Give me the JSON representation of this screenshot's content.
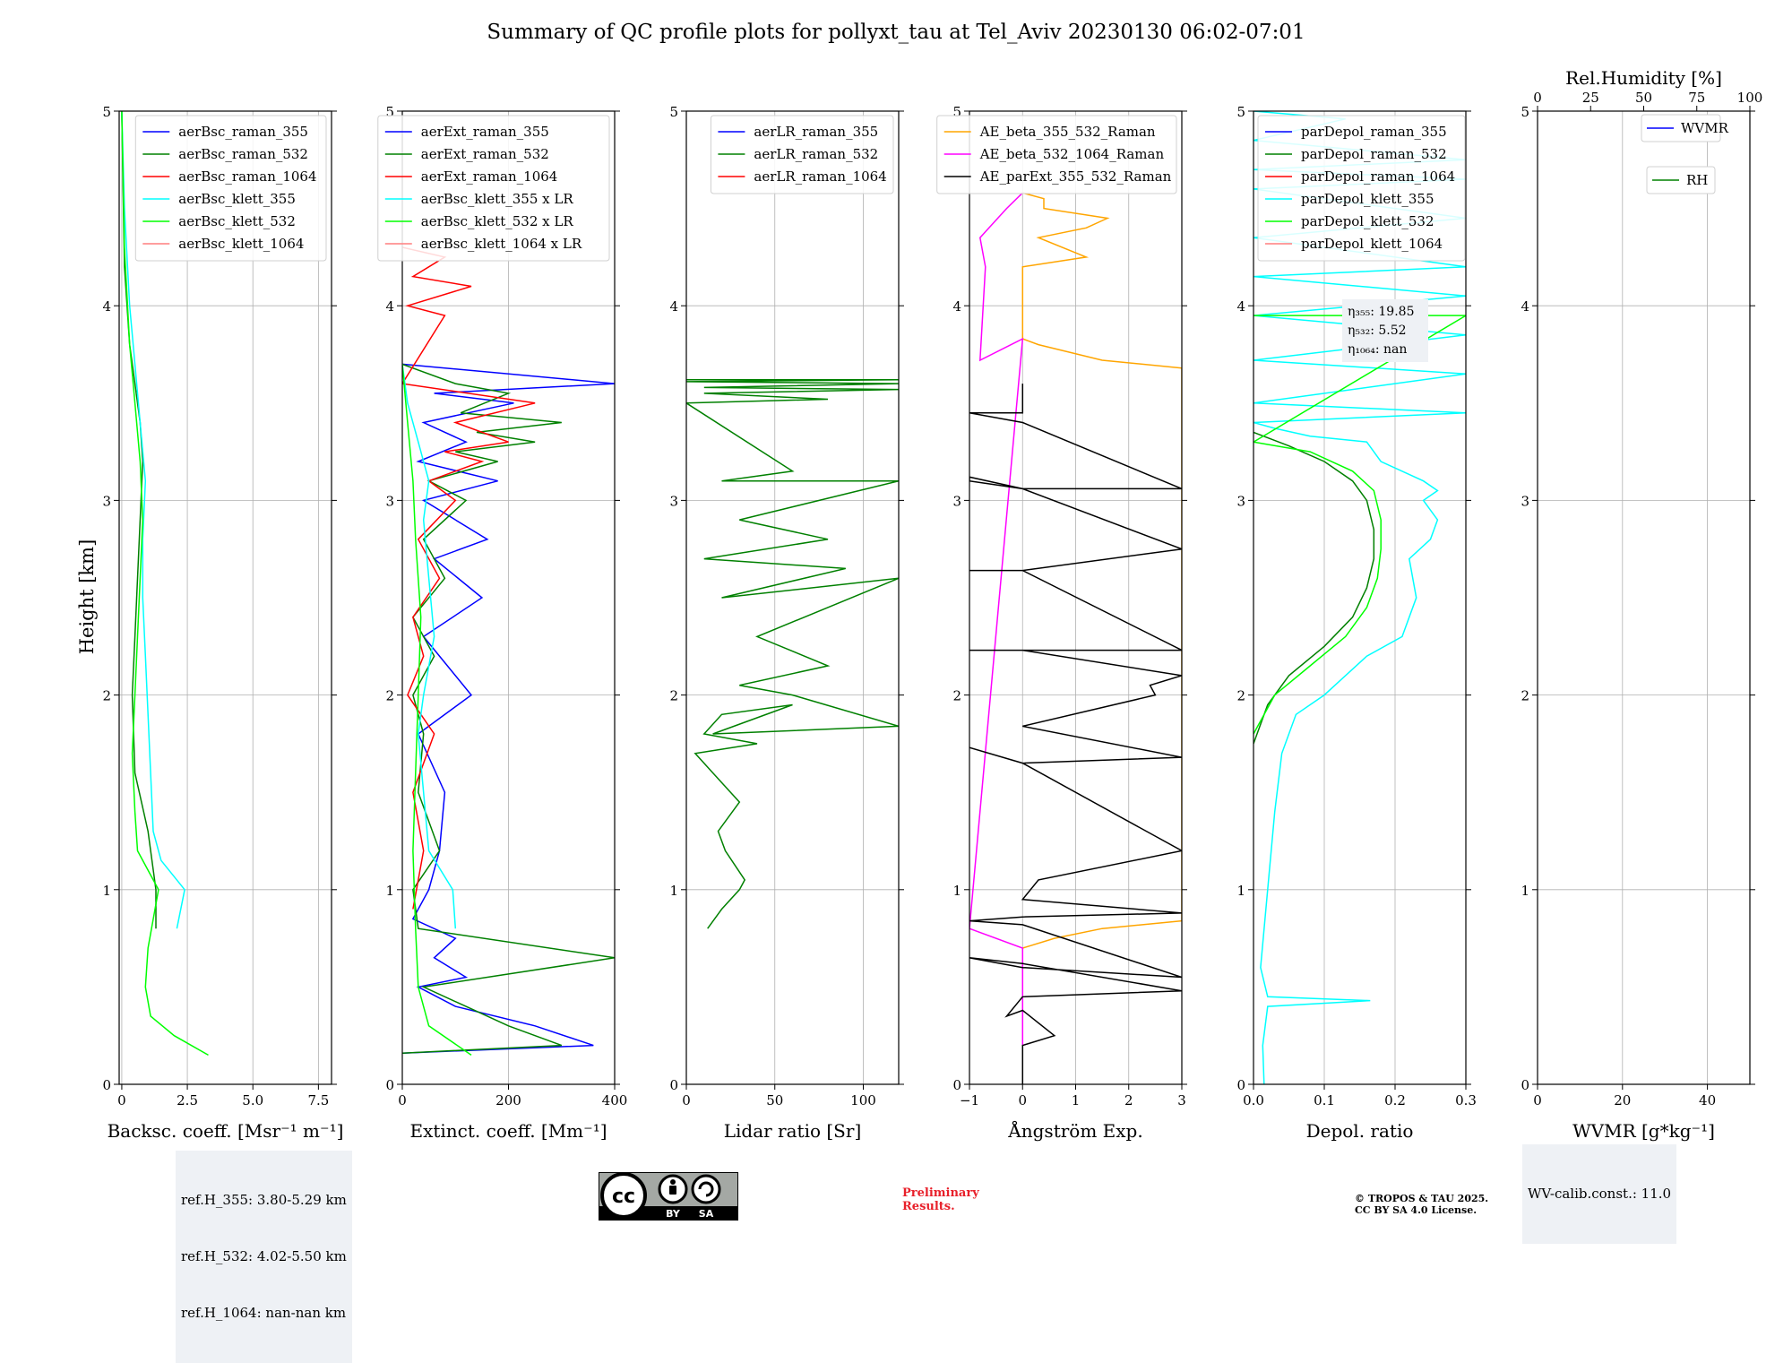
{
  "title": "Summary of QC profile plots for pollyxt_tau at Tel_Aviv 20230130 06:02-07:01",
  "ylabel": "Height [km]",
  "colors": {
    "blue": "#0000ff",
    "green": "#008000",
    "red": "#ff0000",
    "cyan": "#00ffff",
    "lime": "#00ff00",
    "lightred": "#ff7f7f",
    "orange": "#ffa500",
    "magenta": "#ff00ff",
    "black": "#000000"
  },
  "chart_data": [
    {
      "type": "line",
      "xlabel": "Backsc. coeff. [Msr⁻¹ m⁻¹]",
      "xlim": [
        -0.1,
        8.0
      ],
      "ylim": [
        0,
        5
      ],
      "xticks": [
        0,
        2.5,
        5.0,
        7.5
      ],
      "xtick_labels": [
        "0",
        "2.5",
        "5.0",
        "7.5"
      ],
      "yticks": [
        0,
        1,
        2,
        3,
        4,
        5
      ],
      "legend": "upper right",
      "series": [
        {
          "name": "aerBsc_raman_355",
          "color": "blue",
          "x": [],
          "y": []
        },
        {
          "name": "aerBsc_raman_532",
          "color": "green",
          "x": [
            1.3,
            1.3,
            1.0,
            0.5,
            0.4,
            0.5,
            0.6,
            0.7,
            0.8,
            0.7,
            0.5,
            0.3,
            0.1,
            0.0
          ],
          "y": [
            0.8,
            1.0,
            1.3,
            1.6,
            2.0,
            2.3,
            2.6,
            2.9,
            3.2,
            3.4,
            3.6,
            3.8,
            4.2,
            5.0
          ]
        },
        {
          "name": "aerBsc_raman_1064",
          "color": "red",
          "x": [],
          "y": []
        },
        {
          "name": "aerBsc_klett_355",
          "color": "cyan",
          "x": [
            2.1,
            2.4,
            1.5,
            1.2,
            1.1,
            1.0,
            0.9,
            0.8,
            0.8,
            0.9,
            0.7,
            0.5,
            0.3,
            0.1,
            0.0
          ],
          "y": [
            0.8,
            1.0,
            1.15,
            1.3,
            1.6,
            1.9,
            2.2,
            2.5,
            2.8,
            3.1,
            3.4,
            3.7,
            4.0,
            4.5,
            5.0
          ]
        },
        {
          "name": "aerBsc_klett_532",
          "color": "lime",
          "x": [
            3.3,
            2.0,
            1.1,
            0.9,
            1.0,
            1.4,
            0.6,
            0.5,
            0.4,
            0.5,
            0.6,
            0.7,
            0.8,
            0.7,
            0.5,
            0.3,
            0.1,
            0.0
          ],
          "y": [
            0.15,
            0.25,
            0.35,
            0.5,
            0.7,
            1.0,
            1.2,
            1.4,
            1.7,
            2.0,
            2.3,
            2.6,
            2.9,
            3.2,
            3.5,
            3.8,
            4.3,
            5.0
          ]
        },
        {
          "name": "aerBsc_klett_1064",
          "color": "lightred",
          "x": [],
          "y": []
        }
      ]
    },
    {
      "type": "line",
      "xlabel": "Extinct. coeff. [Mm⁻¹]",
      "xlim": [
        0,
        400
      ],
      "ylim": [
        0,
        5
      ],
      "xticks": [
        0,
        200,
        400
      ],
      "xtick_labels": [
        "0",
        "200",
        "400"
      ],
      "yticks": [
        0,
        1,
        2,
        3,
        4,
        5
      ],
      "legend": "upper right",
      "series": [
        {
          "name": "aerExt_raman_355",
          "color": "blue",
          "x": [
            0,
            360,
            250,
            100,
            30,
            120,
            60,
            100,
            20,
            50,
            70,
            80,
            30,
            130,
            40,
            150,
            60,
            160,
            40,
            180,
            30,
            120,
            40,
            210,
            60,
            400,
            0
          ],
          "y": [
            0.16,
            0.2,
            0.3,
            0.4,
            0.5,
            0.55,
            0.65,
            0.75,
            0.85,
            1.0,
            1.2,
            1.5,
            1.8,
            2.0,
            2.3,
            2.5,
            2.7,
            2.8,
            3.0,
            3.1,
            3.2,
            3.3,
            3.4,
            3.5,
            3.55,
            3.6,
            3.7
          ]
        },
        {
          "name": "aerExt_raman_532",
          "color": "green",
          "x": [
            0,
            300,
            200,
            120,
            40,
            400,
            30,
            20,
            70,
            30,
            40,
            20,
            60,
            20,
            80,
            40,
            120,
            50,
            180,
            100,
            250,
            140,
            300,
            110,
            200,
            100,
            0
          ],
          "y": [
            0.16,
            0.2,
            0.3,
            0.4,
            0.5,
            0.65,
            0.8,
            1.0,
            1.2,
            1.5,
            1.8,
            2.0,
            2.2,
            2.4,
            2.6,
            2.8,
            3.0,
            3.1,
            3.2,
            3.25,
            3.3,
            3.35,
            3.4,
            3.45,
            3.55,
            3.6,
            3.7
          ]
        },
        {
          "name": "aerExt_raman_1064",
          "color": "red",
          "x": [
            20,
            40,
            20,
            60,
            10,
            40,
            20,
            70,
            30,
            100,
            50,
            150,
            80,
            200,
            100,
            250,
            0,
            80,
            10,
            130,
            20,
            80,
            0
          ],
          "y": [
            0.9,
            1.2,
            1.5,
            1.8,
            2.0,
            2.2,
            2.4,
            2.6,
            2.8,
            3.0,
            3.1,
            3.2,
            3.25,
            3.3,
            3.4,
            3.5,
            3.6,
            3.95,
            4.0,
            4.1,
            4.15,
            4.25,
            4.3
          ]
        },
        {
          "name": "aerBsc_klett_355 x LR",
          "color": "cyan",
          "x": [
            100,
            95,
            50,
            40,
            30,
            40,
            60,
            50,
            40,
            50,
            30,
            10,
            0
          ],
          "y": [
            0.8,
            1.0,
            1.2,
            1.5,
            1.8,
            2.0,
            2.3,
            2.6,
            2.9,
            3.1,
            3.3,
            3.5,
            3.7
          ]
        },
        {
          "name": "aerBsc_klett_532 x LR",
          "color": "lime",
          "x": [
            130,
            50,
            30,
            25,
            20,
            25,
            30,
            35,
            25,
            20,
            10,
            0
          ],
          "y": [
            0.15,
            0.3,
            0.5,
            0.8,
            1.2,
            1.6,
            2.0,
            2.4,
            2.8,
            3.1,
            3.4,
            3.7
          ]
        },
        {
          "name": "aerBsc_klett_1064 x LR",
          "color": "lightred",
          "x": [],
          "y": []
        }
      ]
    },
    {
      "type": "line",
      "xlabel": "Lidar ratio [Sr]",
      "xlim": [
        0,
        120
      ],
      "ylim": [
        0,
        5
      ],
      "xticks": [
        0,
        50,
        100
      ],
      "xtick_labels": [
        "0",
        "50",
        "100"
      ],
      "yticks": [
        0,
        1,
        2,
        3,
        4,
        5
      ],
      "legend": "upper right",
      "series": [
        {
          "name": "aerLR_raman_355",
          "color": "blue",
          "x": [],
          "y": []
        },
        {
          "name": "aerLR_raman_532",
          "color": "green",
          "x": [
            12,
            20,
            30,
            33,
            22,
            18,
            30,
            15,
            5,
            40,
            10,
            20,
            60,
            15,
            120,
            60,
            30,
            80,
            40,
            120,
            20,
            90,
            10,
            80,
            30,
            120,
            20,
            60,
            0,
            80,
            10,
            120,
            10,
            120,
            0,
            120,
            0
          ],
          "y": [
            0.8,
            0.9,
            1.0,
            1.05,
            1.2,
            1.3,
            1.45,
            1.6,
            1.7,
            1.75,
            1.8,
            1.9,
            1.95,
            1.8,
            1.84,
            2.0,
            2.05,
            2.15,
            2.3,
            2.6,
            2.5,
            2.65,
            2.7,
            2.8,
            2.9,
            3.1,
            3.1,
            3.15,
            3.5,
            3.52,
            3.55,
            3.57,
            3.58,
            3.6,
            3.61,
            3.62,
            3.62
          ]
        },
        {
          "name": "aerLR_raman_1064",
          "color": "red",
          "x": [],
          "y": []
        }
      ]
    },
    {
      "type": "line",
      "xlabel": "Ångström Exp.",
      "xlim": [
        -1,
        3
      ],
      "ylim": [
        0,
        5
      ],
      "xticks": [
        -1,
        0,
        1,
        2,
        3
      ],
      "xtick_labels": [
        "−1",
        "0",
        "1",
        "2",
        "3"
      ],
      "yticks": [
        0,
        1,
        2,
        3,
        4,
        5
      ],
      "legend": "upper right",
      "series": [
        {
          "name": "AE_beta_355_532_Raman",
          "color": "orange",
          "x": [
            0,
            0.6,
            1.5,
            3.0,
            3.0,
            1.5,
            0.3,
            0,
            0,
            1.2,
            0.3,
            1.2,
            1.6,
            0.4,
            0.4,
            0
          ],
          "y": [
            0.7,
            0.75,
            0.8,
            0.84,
            3.68,
            3.72,
            3.8,
            3.83,
            4.2,
            4.25,
            4.35,
            4.4,
            4.45,
            4.5,
            4.55,
            4.58
          ]
        },
        {
          "name": "AE_beta_532_1064_Raman",
          "color": "magenta",
          "x": [
            0,
            0,
            -1,
            0,
            -0.8,
            -0.7,
            -0.8,
            -0.3,
            0
          ],
          "y": [
            0.2,
            0.7,
            0.8,
            3.83,
            3.72,
            4.2,
            4.35,
            4.5,
            4.58
          ]
        },
        {
          "name": "AE_parExt_355_532_Raman",
          "color": "black",
          "x": [
            0,
            0,
            0.6,
            0,
            -0.3,
            0,
            3,
            0,
            -1,
            0,
            3,
            0,
            -1,
            0,
            3,
            0,
            0.3,
            3,
            0,
            -1,
            0,
            3,
            0,
            2.5,
            2.4,
            3,
            0,
            -1,
            0,
            3,
            0,
            -1,
            0,
            3,
            0,
            -1,
            -1,
            0,
            3,
            0,
            -1,
            0,
            0
          ],
          "y": [
            0,
            0.2,
            0.25,
            0.38,
            0.35,
            0.45,
            0.48,
            0.62,
            0.65,
            0.6,
            0.55,
            0.82,
            0.84,
            0.86,
            0.88,
            0.95,
            1.05,
            1.2,
            1.65,
            1.73,
            1.65,
            1.68,
            1.84,
            2.0,
            2.05,
            2.1,
            2.23,
            2.23,
            2.23,
            2.23,
            2.64,
            2.64,
            2.64,
            2.75,
            3.06,
            3.1,
            3.12,
            3.06,
            3.06,
            3.4,
            3.45,
            3.45,
            3.6
          ]
        }
      ]
    },
    {
      "type": "line",
      "xlabel": "Depol. ratio",
      "xlim": [
        0,
        0.3
      ],
      "ylim": [
        0,
        5
      ],
      "xticks": [
        0,
        0.1,
        0.2,
        0.3
      ],
      "xtick_labels": [
        "0.0",
        "0.1",
        "0.2",
        "0.3"
      ],
      "yticks": [
        0,
        1,
        2,
        3,
        4,
        5
      ],
      "legend": "upper left",
      "annotations": [
        "η₃₅₅: 19.85",
        "η₅₃₂: 5.52",
        "η₁₀₆₄: nan"
      ],
      "series": [
        {
          "name": "parDepol_raman_355",
          "color": "blue",
          "x": [],
          "y": []
        },
        {
          "name": "parDepol_raman_532",
          "color": "green",
          "x": [
            0.0,
            0.02,
            0.05,
            0.1,
            0.14,
            0.16,
            0.17,
            0.17,
            0.16,
            0.14,
            0.1,
            0.05,
            0.0
          ],
          "y": [
            1.75,
            1.95,
            2.1,
            2.25,
            2.4,
            2.55,
            2.7,
            2.85,
            3.0,
            3.1,
            3.2,
            3.28,
            3.35
          ]
        },
        {
          "name": "parDepol_raman_1064",
          "color": "red",
          "x": [],
          "y": []
        },
        {
          "name": "parDepol_klett_355",
          "color": "cyan",
          "x": [
            0.015,
            0.013,
            0.02,
            0.165,
            0.02,
            0.01,
            0.02,
            0.03,
            0.04,
            0.06,
            0.1,
            0.16,
            0.21,
            0.23,
            0.22,
            0.25,
            0.26,
            0.24,
            0.26,
            0.24,
            0.18,
            0.16,
            0.08,
            0.03,
            0.0,
            0.3,
            0.0,
            0.3,
            0.0,
            0.3,
            0.0,
            0.3,
            0.0,
            0.3,
            0.0,
            0.3,
            0.0,
            0.3,
            0.0,
            0.3,
            0.0,
            0.13,
            0.0
          ],
          "y": [
            0.0,
            0.2,
            0.4,
            0.43,
            0.45,
            0.6,
            1.0,
            1.4,
            1.7,
            1.9,
            2.0,
            2.2,
            2.3,
            2.5,
            2.7,
            2.8,
            2.9,
            3.0,
            3.05,
            3.1,
            3.2,
            3.3,
            3.33,
            3.37,
            3.4,
            3.45,
            3.5,
            3.65,
            3.72,
            3.85,
            3.95,
            4.05,
            4.15,
            4.2,
            4.35,
            4.45,
            4.6,
            4.65,
            4.7,
            4.75,
            4.85,
            4.96,
            5.0
          ]
        },
        {
          "name": "parDepol_klett_532",
          "color": "lime",
          "x": [
            0.0,
            0.03,
            0.08,
            0.13,
            0.16,
            0.175,
            0.18,
            0.18,
            0.17,
            0.14,
            0.08,
            0.0,
            0.3,
            0.0
          ],
          "y": [
            1.8,
            2.0,
            2.15,
            2.3,
            2.45,
            2.6,
            2.75,
            2.9,
            3.05,
            3.15,
            3.25,
            3.3,
            3.95,
            3.95
          ]
        },
        {
          "name": "parDepol_klett_1064",
          "color": "lightred",
          "x": [],
          "y": []
        }
      ]
    },
    {
      "type": "line",
      "xlabel": "WVMR [g*kg⁻¹]",
      "xlim": [
        0,
        50
      ],
      "ylim": [
        0,
        5
      ],
      "xticks": [
        0,
        20,
        40
      ],
      "xtick_labels": [
        "0",
        "20",
        "40"
      ],
      "yticks": [
        0,
        1,
        2,
        3,
        4,
        5
      ],
      "x2label": "Rel.Humidity [%]",
      "x2lim": [
        0,
        100
      ],
      "x2ticks": [
        0,
        25,
        50,
        75,
        100
      ],
      "x2tick_labels": [
        "0",
        "25",
        "50",
        "75",
        "100"
      ],
      "legend": "upper right",
      "series": [
        {
          "name": "WVMR",
          "color": "blue",
          "x": [],
          "y": []
        },
        {
          "name": "RH",
          "color": "green",
          "x": [],
          "y": []
        }
      ]
    }
  ],
  "footer": {
    "ref_heights": [
      "ref.H_355: 3.80-5.29 km",
      "ref.H_532: 4.02-5.50 km",
      "ref.H_1064: nan-nan km"
    ],
    "wv_calib": "WV-calib.const.: 11.0",
    "license_badge": [
      "cc",
      "BY",
      "SA"
    ],
    "preliminary": [
      "Preliminary",
      "Results."
    ],
    "copyright": [
      "© TROPOS & TAU 2025.",
      "CC BY SA 4.0 License."
    ]
  }
}
